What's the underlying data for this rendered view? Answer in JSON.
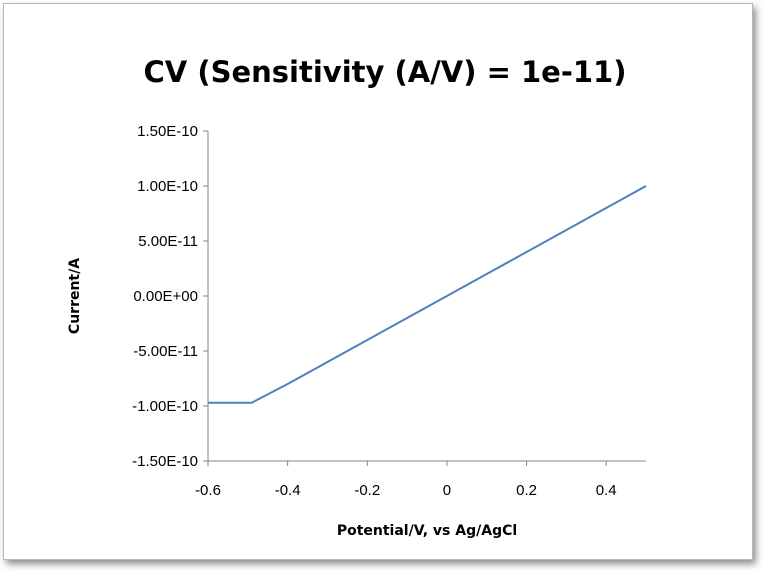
{
  "chart_data": {
    "type": "line",
    "title": "CV (Sensitivity (A/V) = 1e-11)",
    "xlabel": "Potential/V, vs Ag/AgCl",
    "ylabel": "Current/A",
    "xlim": [
      -0.6,
      0.5
    ],
    "ylim": [
      -1.5e-10,
      1.5e-10
    ],
    "x_ticks": [
      -0.6,
      -0.4,
      -0.2,
      0,
      0.2,
      0.4
    ],
    "x_tick_labels": [
      "-0.6",
      "-0.4",
      "-0.2",
      "0",
      "0.2",
      "0.4"
    ],
    "y_ticks": [
      1.5e-10,
      1e-10,
      5e-11,
      0,
      -5e-11,
      -1e-10,
      -1.5e-10
    ],
    "y_tick_labels": [
      "1.50E-10",
      "1.00E-10",
      "5.00E-11",
      "0.00E+00",
      "-5.00E-11",
      "-1.00E-10",
      "-1.50E-10"
    ],
    "grid": false,
    "legend": "none",
    "series": [
      {
        "color": "#4f81bd",
        "x": [
          -0.6,
          -0.49,
          -0.4,
          -0.3,
          -0.2,
          -0.1,
          0,
          0.1,
          0.2,
          0.3,
          0.4,
          0.5
        ],
        "y": [
          -9.7e-11,
          -9.7e-11,
          -8e-11,
          -6e-11,
          -4e-11,
          -2e-11,
          0,
          2e-11,
          4e-11,
          6e-11,
          8e-11,
          1e-10
        ]
      }
    ]
  }
}
